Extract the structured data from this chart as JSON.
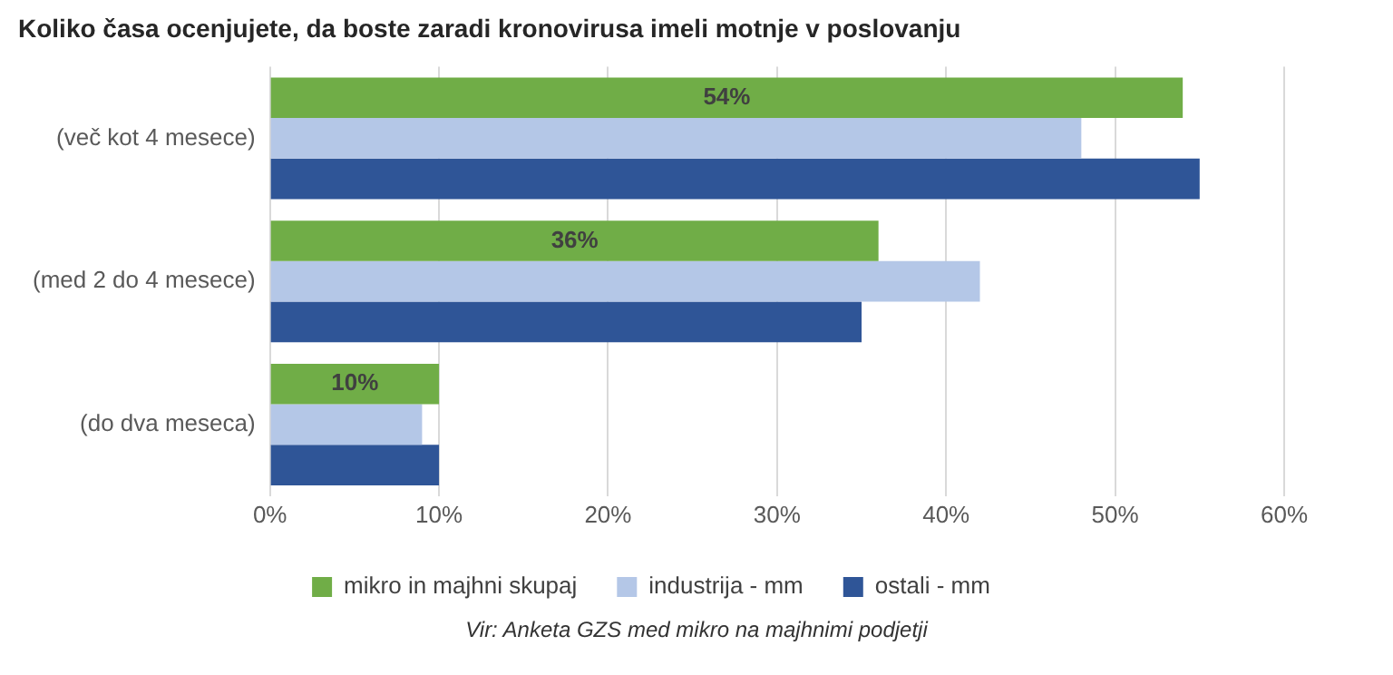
{
  "chart_data": {
    "type": "bar",
    "orientation": "horizontal",
    "title": "Koliko časa ocenjujete, da boste zaradi kronovirusa imeli motnje v poslovanju",
    "categories": [
      "(več kot 4 mesece)",
      "(med 2 do 4 mesece)",
      "(do dva meseca)"
    ],
    "series": [
      {
        "name": "mikro in majhni skupaj",
        "color": "#70ad47",
        "values": [
          54,
          36,
          10
        ],
        "value_labels": [
          "54%",
          "36%",
          "10%"
        ]
      },
      {
        "name": "industrija - mm",
        "color": "#b4c7e7",
        "values": [
          48,
          42,
          9
        ]
      },
      {
        "name": "ostali - mm",
        "color": "#2f5597",
        "values": [
          55,
          35,
          10
        ]
      }
    ],
    "xlim": [
      0,
      60
    ],
    "xticks": [
      {
        "value": 0,
        "label": "0%"
      },
      {
        "value": 10,
        "label": "10%"
      },
      {
        "value": 20,
        "label": "20%"
      },
      {
        "value": 30,
        "label": "30%"
      },
      {
        "value": 40,
        "label": "40%"
      },
      {
        "value": 50,
        "label": "50%"
      },
      {
        "value": 60,
        "label": "60%"
      }
    ],
    "grid": "x",
    "legend": "bottom",
    "annotations": [
      "Vir: Anketa GZS med mikro na majhnimi podjetji"
    ]
  }
}
